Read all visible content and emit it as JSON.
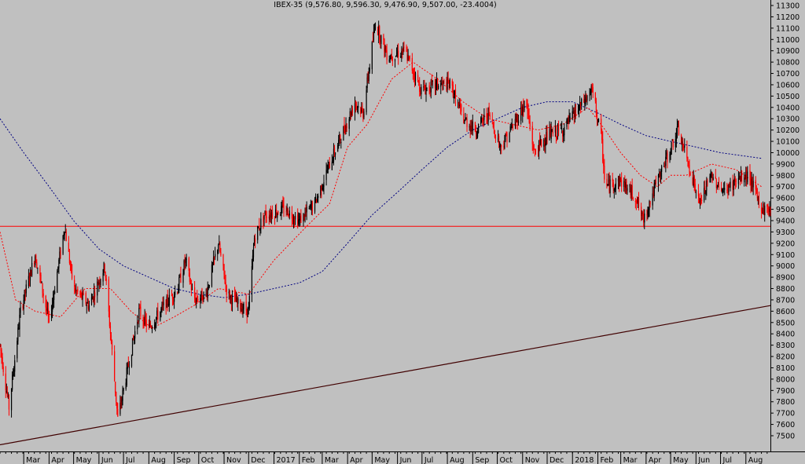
{
  "chart_data": {
    "type": "candlestick",
    "title": "IBEX-35 (9,576.80, 9,596.30, 9,476.90, 9,507.00, -23.4004)",
    "ylim": [
      7400,
      11350
    ],
    "y_ticks": [
      7500,
      7600,
      7700,
      7800,
      7900,
      8000,
      8100,
      8200,
      8300,
      8400,
      8500,
      8600,
      8700,
      8800,
      8900,
      9000,
      9100,
      9200,
      9300,
      9400,
      9500,
      9600,
      9700,
      9800,
      9900,
      10000,
      10100,
      10200,
      10300,
      10400,
      10500,
      10600,
      10700,
      10800,
      10900,
      11000,
      11100,
      11200,
      11300
    ],
    "x_labels": [
      "Mar",
      "Apr",
      "May",
      "Jun",
      "Jul",
      "Aug",
      "Sep",
      "Oct",
      "Nov",
      "Dec",
      "2017",
      "Feb",
      "Mar",
      "Apr",
      "May",
      "Jun",
      "Jul",
      "Aug",
      "Sep",
      "Oct",
      "Nov",
      "Dec",
      "2018",
      "Feb",
      "Mar",
      "Apr",
      "May",
      "Jun",
      "Jul",
      "Aug"
    ],
    "last": {
      "open": 9576.8,
      "high": 9596.3,
      "low": 9476.9,
      "close": 9507.0,
      "change": -23.4004
    },
    "horizontal_line": {
      "value": 9350,
      "color": "#ff0000"
    },
    "trendline": {
      "from": [
        "2016-02-01",
        7420
      ],
      "to": [
        "2018-08-31",
        8650
      ],
      "color": "#400000"
    },
    "price_keypoints": [
      [
        "2016-02-01",
        8300
      ],
      [
        "2016-02-12",
        7750
      ],
      [
        "2016-02-26",
        8600
      ],
      [
        "2016-03-15",
        9100
      ],
      [
        "2016-04-01",
        8500
      ],
      [
        "2016-04-20",
        9350
      ],
      [
        "2016-05-01",
        8800
      ],
      [
        "2016-05-20",
        8650
      ],
      [
        "2016-06-08",
        9000
      ],
      [
        "2016-06-24",
        7650
      ],
      [
        "2016-07-05",
        8050
      ],
      [
        "2016-07-20",
        8600
      ],
      [
        "2016-08-01",
        8450
      ],
      [
        "2016-08-20",
        8650
      ],
      [
        "2016-09-05",
        8800
      ],
      [
        "2016-09-15",
        9050
      ],
      [
        "2016-09-25",
        8700
      ],
      [
        "2016-10-10",
        8750
      ],
      [
        "2016-10-25",
        9200
      ],
      [
        "2016-11-05",
        8750
      ],
      [
        "2016-11-20",
        8650
      ],
      [
        "2016-12-01",
        8600
      ],
      [
        "2016-12-08",
        9250
      ],
      [
        "2016-12-20",
        9450
      ],
      [
        "2017-01-15",
        9500
      ],
      [
        "2017-02-01",
        9400
      ],
      [
        "2017-02-20",
        9550
      ],
      [
        "2017-03-10",
        9900
      ],
      [
        "2017-03-30",
        10250
      ],
      [
        "2017-04-10",
        10450
      ],
      [
        "2017-04-20",
        10350
      ],
      [
        "2017-05-05",
        11150
      ],
      [
        "2017-05-20",
        10850
      ],
      [
        "2017-06-10",
        10900
      ],
      [
        "2017-06-30",
        10550
      ],
      [
        "2017-07-20",
        10600
      ],
      [
        "2017-08-05",
        10600
      ],
      [
        "2017-08-20",
        10300
      ],
      [
        "2017-09-05",
        10200
      ],
      [
        "2017-09-20",
        10350
      ],
      [
        "2017-10-05",
        10050
      ],
      [
        "2017-10-25",
        10300
      ],
      [
        "2017-11-05",
        10450
      ],
      [
        "2017-11-15",
        10000
      ],
      [
        "2017-12-01",
        10150
      ],
      [
        "2017-12-20",
        10200
      ],
      [
        "2018-01-10",
        10400
      ],
      [
        "2018-01-25",
        10550
      ],
      [
        "2018-02-05",
        10150
      ],
      [
        "2018-02-10",
        9700
      ],
      [
        "2018-03-01",
        9750
      ],
      [
        "2018-03-20",
        9600
      ],
      [
        "2018-03-28",
        9400
      ],
      [
        "2018-04-15",
        9750
      ],
      [
        "2018-05-10",
        10200
      ],
      [
        "2018-05-25",
        9850
      ],
      [
        "2018-06-05",
        9550
      ],
      [
        "2018-06-20",
        9800
      ],
      [
        "2018-07-05",
        9650
      ],
      [
        "2018-07-20",
        9750
      ],
      [
        "2018-08-05",
        9800
      ],
      [
        "2018-08-20",
        9500
      ]
    ],
    "sma_short": [
      [
        "2016-02-01",
        9300
      ],
      [
        "2016-02-20",
        8700
      ],
      [
        "2016-03-15",
        8600
      ],
      [
        "2016-04-15",
        8550
      ],
      [
        "2016-05-15",
        8800
      ],
      [
        "2016-06-15",
        8800
      ],
      [
        "2016-07-10",
        8600
      ],
      [
        "2016-08-05",
        8450
      ],
      [
        "2016-09-01",
        8550
      ],
      [
        "2016-09-25",
        8650
      ],
      [
        "2016-10-25",
        8800
      ],
      [
        "2016-12-01",
        8750
      ],
      [
        "2017-01-01",
        9050
      ],
      [
        "2017-02-10",
        9350
      ],
      [
        "2017-03-10",
        9550
      ],
      [
        "2017-04-01",
        10050
      ],
      [
        "2017-04-25",
        10250
      ],
      [
        "2017-05-25",
        10650
      ],
      [
        "2017-06-20",
        10800
      ],
      [
        "2017-07-20",
        10650
      ],
      [
        "2017-08-20",
        10450
      ],
      [
        "2017-09-20",
        10300
      ],
      [
        "2017-10-20",
        10250
      ],
      [
        "2017-11-20",
        10200
      ],
      [
        "2017-12-20",
        10250
      ],
      [
        "2018-01-20",
        10400
      ],
      [
        "2018-02-10",
        10200
      ],
      [
        "2018-03-01",
        10000
      ],
      [
        "2018-03-25",
        9800
      ],
      [
        "2018-04-15",
        9700
      ],
      [
        "2018-05-01",
        9800
      ],
      [
        "2018-05-20",
        9800
      ],
      [
        "2018-06-20",
        9900
      ],
      [
        "2018-07-20",
        9850
      ],
      [
        "2018-08-20",
        9700
      ]
    ],
    "sma_long": [
      [
        "2016-02-01",
        10300
      ],
      [
        "2016-03-01",
        10000
      ],
      [
        "2016-04-01",
        9700
      ],
      [
        "2016-05-01",
        9400
      ],
      [
        "2016-06-01",
        9150
      ],
      [
        "2016-07-01",
        9000
      ],
      [
        "2016-08-01",
        8900
      ],
      [
        "2016-09-01",
        8800
      ],
      [
        "2016-10-01",
        8750
      ],
      [
        "2016-11-01",
        8720
      ],
      [
        "2016-12-01",
        8750
      ],
      [
        "2017-01-01",
        8800
      ],
      [
        "2017-02-01",
        8850
      ],
      [
        "2017-03-01",
        8950
      ],
      [
        "2017-04-01",
        9200
      ],
      [
        "2017-05-01",
        9450
      ],
      [
        "2017-06-01",
        9650
      ],
      [
        "2017-07-01",
        9850
      ],
      [
        "2017-08-01",
        10050
      ],
      [
        "2017-09-01",
        10200
      ],
      [
        "2017-10-01",
        10300
      ],
      [
        "2017-11-01",
        10400
      ],
      [
        "2017-12-01",
        10450
      ],
      [
        "2018-01-01",
        10450
      ],
      [
        "2018-02-01",
        10350
      ],
      [
        "2018-03-01",
        10250
      ],
      [
        "2018-04-01",
        10150
      ],
      [
        "2018-05-01",
        10100
      ],
      [
        "2018-06-01",
        10050
      ],
      [
        "2018-07-01",
        10000
      ],
      [
        "2018-08-20",
        9950
      ]
    ],
    "colors": {
      "up": "#000000",
      "down": "#ff0000",
      "sma_short": "#ff0000",
      "sma_long": "#000080",
      "grid": "#000000"
    }
  }
}
